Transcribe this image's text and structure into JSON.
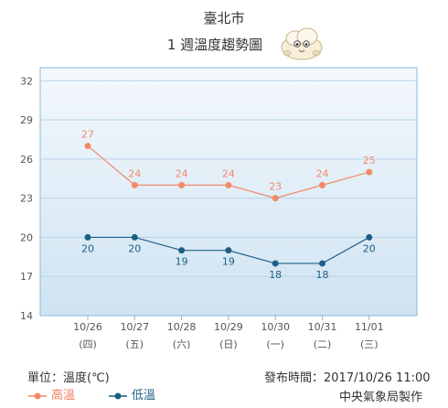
{
  "page": {
    "city": "臺北市",
    "subtitle": "1 週溫度趨勢圖",
    "unit_text": "單位：溫度(℃)",
    "issued_text": "發布時間：2017/10/26 11:00",
    "agency": "中央氣象局製作",
    "colors": {
      "high": "#f28a6a",
      "low": "#1d5f86",
      "plot_bg_top": "#f3f8fc",
      "plot_bg_bottom": "#cfe3f2",
      "border": "#7fb0d6"
    },
    "mascot_icon": "cloud-mascot-icon"
  },
  "chart_data": {
    "type": "line",
    "categories": [
      "10/26",
      "10/27",
      "10/28",
      "10/29",
      "10/30",
      "10/31",
      "11/01"
    ],
    "weekdays": [
      "(四)",
      "(五)",
      "(六)",
      "(日)",
      "(一)",
      "(二)",
      "(三)"
    ],
    "series": [
      {
        "name": "高溫",
        "values": [
          27,
          24,
          24,
          24,
          23,
          24,
          25
        ]
      },
      {
        "name": "低溫",
        "values": [
          20,
          20,
          19,
          19,
          18,
          18,
          20
        ]
      }
    ],
    "yticks": [
      14,
      17,
      20,
      23,
      26,
      29,
      32
    ],
    "ylim": [
      14,
      33
    ],
    "grid": true,
    "legend_position": "bottom-left"
  }
}
